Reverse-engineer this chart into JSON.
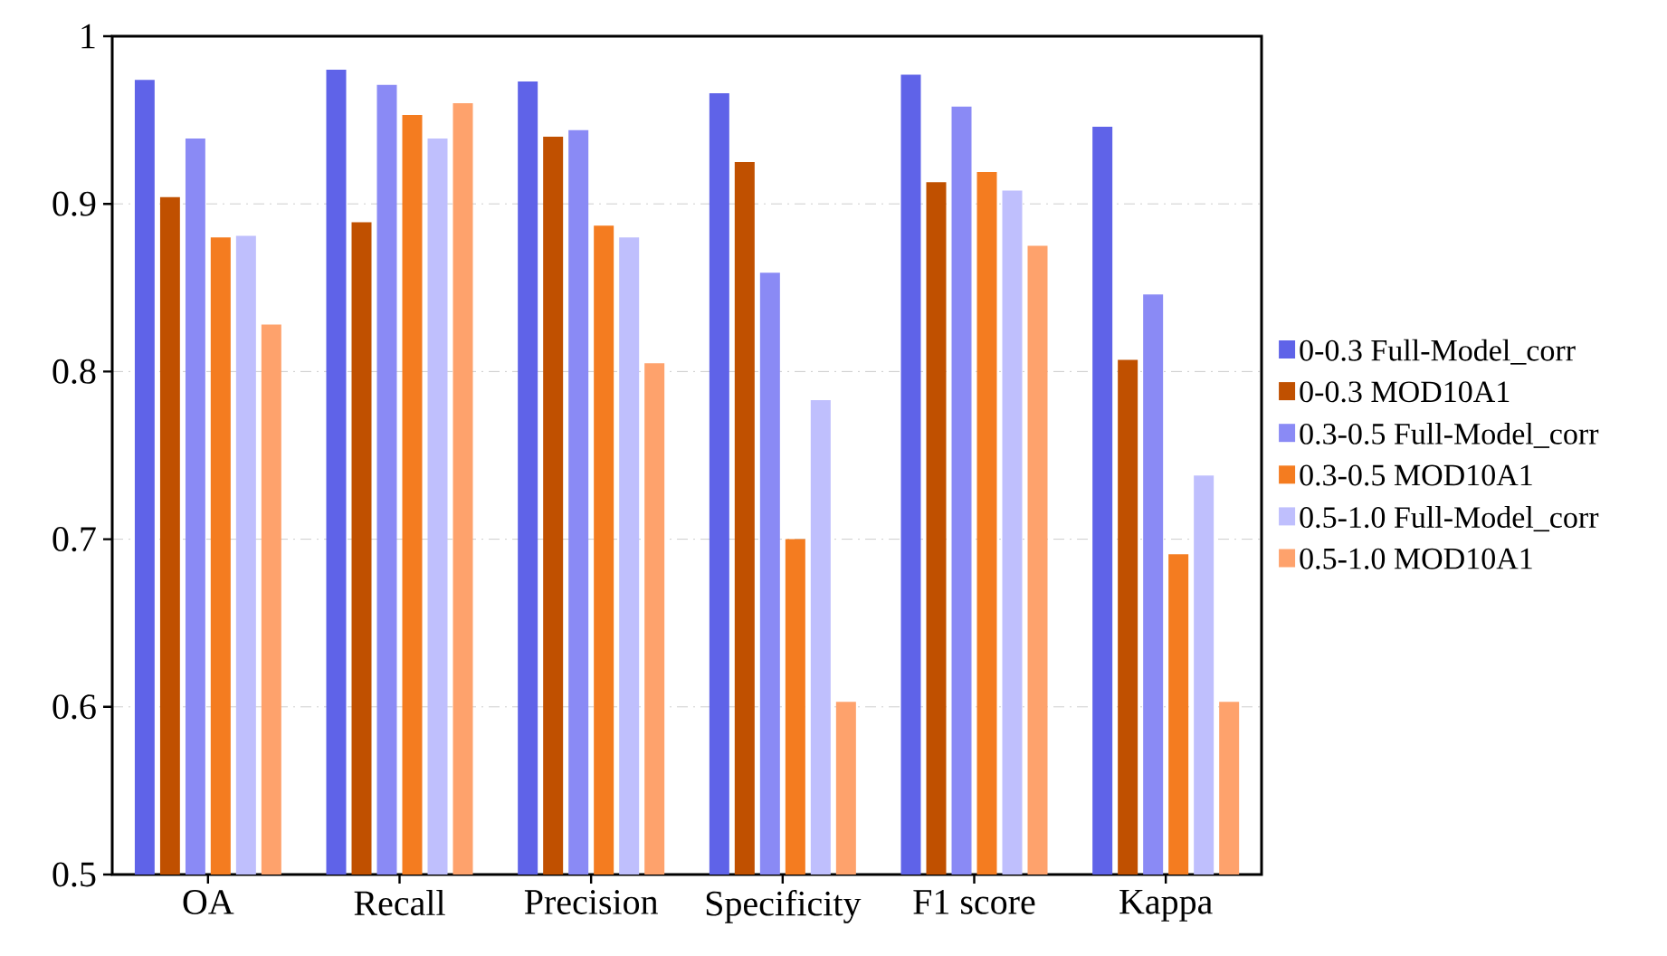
{
  "chart_data": {
    "type": "bar",
    "categories": [
      "OA",
      "Recall",
      "Precision",
      "Specificity",
      "F1  score",
      "Kappa"
    ],
    "series": [
      {
        "name": "0-0.3 Full-Model_corr",
        "color": "#5f63e8",
        "values": [
          0.974,
          0.98,
          0.973,
          0.966,
          0.977,
          0.946
        ]
      },
      {
        "name": "0-0.3 MOD10A1",
        "color": "#c05000",
        "values": [
          0.904,
          0.889,
          0.94,
          0.925,
          0.913,
          0.807
        ]
      },
      {
        "name": "0.3-0.5 Full-Model_corr",
        "color": "#8a8af5",
        "values": [
          0.939,
          0.971,
          0.944,
          0.859,
          0.958,
          0.846
        ]
      },
      {
        "name": "0.3-0.5 MOD10A1",
        "color": "#f47c20",
        "values": [
          0.88,
          0.953,
          0.887,
          0.7,
          0.919,
          0.691
        ]
      },
      {
        "name": "0.5-1.0 Full-Model_corr",
        "color": "#bfbffd",
        "values": [
          0.881,
          0.939,
          0.88,
          0.783,
          0.908,
          0.738
        ]
      },
      {
        "name": "0.5-1.0 MOD10A1",
        "color": "#fea26c",
        "values": [
          0.828,
          0.96,
          0.805,
          0.603,
          0.875,
          0.603
        ]
      }
    ],
    "ylim": [
      0.5,
      1
    ],
    "yticks": [
      0.5,
      0.6,
      0.7,
      0.8,
      0.9,
      1
    ],
    "grid": "y",
    "legend": "right"
  }
}
